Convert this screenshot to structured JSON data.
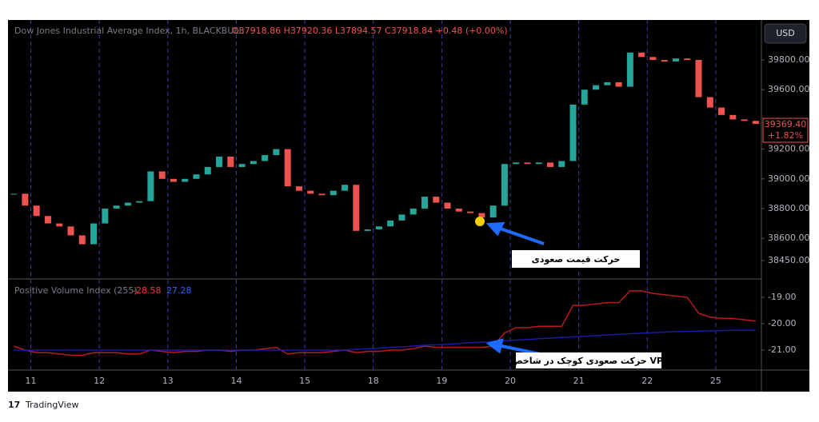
{
  "header": {
    "symbol": "Dow Jones Industrial Average Index, 1h, BLACKBULL",
    "ohlc": "O37918.86 H37920.36 L37894.57 C37918.84 +0.48 (+0.00%)",
    "currency": "USD",
    "last_price": "39369.40",
    "change": "+1.82%"
  },
  "chart_data": [
    {
      "type": "candlestick",
      "up_color": "#26a69a",
      "down_color": "#ef5350",
      "xlim": [
        0,
        66
      ],
      "xticks": [
        {
          "value": 2,
          "label": "11"
        },
        {
          "value": 8,
          "label": "12"
        },
        {
          "value": 14,
          "label": "13"
        },
        {
          "value": 20,
          "label": "14"
        },
        {
          "value": 26,
          "label": "15"
        },
        {
          "value": 32,
          "label": "18"
        },
        {
          "value": 38,
          "label": "19"
        },
        {
          "value": 44,
          "label": "20"
        },
        {
          "value": 50,
          "label": "21"
        },
        {
          "value": 56,
          "label": "22"
        },
        {
          "value": 62,
          "label": "25"
        }
      ],
      "ylim": [
        38332,
        40069
      ],
      "yticks": [
        {
          "value": 38450,
          "label": "38450.00"
        },
        {
          "value": 38600,
          "label": "38600.00"
        },
        {
          "value": 38800,
          "label": "38800.00"
        },
        {
          "value": 39000,
          "label": "39000.00"
        },
        {
          "value": 39200,
          "label": "39200.00"
        },
        {
          "value": 39600,
          "label": "39600.00"
        },
        {
          "value": 39800,
          "label": "39800.00"
        }
      ],
      "values": [
        38900,
        38820,
        38750,
        38700,
        38680,
        38620,
        38560,
        38700,
        38800,
        38820,
        38840,
        38850,
        39050,
        39000,
        38980,
        39000,
        39030,
        39080,
        39150,
        39080,
        39100,
        39120,
        39160,
        39200,
        38950,
        38920,
        38900,
        38890,
        38920,
        38960,
        38650,
        38660,
        38680,
        38720,
        38760,
        38800,
        38880,
        38840,
        38800,
        38780,
        38770,
        38740,
        38820,
        39100,
        39110,
        39100,
        39110,
        39080,
        39120,
        39500,
        39600,
        39630,
        39650,
        39620,
        39850,
        39820,
        39800,
        39790,
        39810,
        39800,
        39550,
        39480,
        39430,
        39400,
        39390,
        39370
      ]
    },
    {
      "type": "line",
      "title": "Positive Volume Index (255)",
      "legend_values": [
        "-28.58",
        "27.28"
      ],
      "xlim": [
        0,
        66
      ],
      "ylim": [
        -21.76,
        -18.33
      ],
      "yticks": [
        {
          "value": -19,
          "label": "-19.00"
        },
        {
          "value": -20,
          "label": "-20.00"
        },
        {
          "value": -21,
          "label": "-21.00"
        }
      ],
      "series": [
        {
          "color": "#b71c1c",
          "values": [
            -20.85,
            -21.0,
            -21.1,
            -21.1,
            -21.15,
            -21.2,
            -21.2,
            -21.1,
            -21.1,
            -21.1,
            -21.15,
            -21.15,
            -21.0,
            -21.05,
            -21.1,
            -21.05,
            -21.05,
            -21.0,
            -21.0,
            -21.05,
            -21.0,
            -21.0,
            -20.95,
            -20.9,
            -21.15,
            -21.1,
            -21.1,
            -21.1,
            -21.05,
            -21.0,
            -21.1,
            -21.05,
            -21.05,
            -21.0,
            -21.0,
            -20.95,
            -20.85,
            -20.9,
            -20.9,
            -20.9,
            -20.9,
            -20.9,
            -20.85,
            -20.35,
            -20.15,
            -20.15,
            -20.1,
            -20.1,
            -20.1,
            -19.3,
            -19.3,
            -19.25,
            -19.2,
            -19.2,
            -18.75,
            -18.75,
            -18.85,
            -18.9,
            -18.95,
            -19.0,
            -19.6,
            -19.75,
            -19.8,
            -19.8,
            -19.85,
            -19.9
          ]
        },
        {
          "color": "#1a1aa6",
          "values": [
            -21.0,
            -21.0,
            -21.0,
            -21.0,
            -21.0,
            -21.0,
            -21.0,
            -21.0,
            -21.0,
            -21.0,
            -21.0,
            -21.0,
            -21.0,
            -21.0,
            -21.0,
            -21.0,
            -21.0,
            -21.0,
            -21.0,
            -21.0,
            -21.0,
            -21.0,
            -21.0,
            -21.0,
            -21.0,
            -21.0,
            -21.0,
            -21.0,
            -21.0,
            -21.0,
            -20.97,
            -20.95,
            -20.93,
            -20.9,
            -20.88,
            -20.85,
            -20.82,
            -20.8,
            -20.78,
            -20.75,
            -20.72,
            -20.7,
            -20.67,
            -20.65,
            -20.62,
            -20.6,
            -20.57,
            -20.55,
            -20.52,
            -20.5,
            -20.48,
            -20.45,
            -20.43,
            -20.4,
            -20.38,
            -20.36,
            -20.34,
            -20.32,
            -20.3,
            -20.29,
            -20.28,
            -20.27,
            -20.26,
            -20.25,
            -20.25,
            -20.25
          ]
        }
      ]
    }
  ],
  "annotations": [
    "حرکت قیمت صعودی",
    "حرکت صعودی کوچک در شاخص VPI"
  ],
  "footer": "TradingView"
}
